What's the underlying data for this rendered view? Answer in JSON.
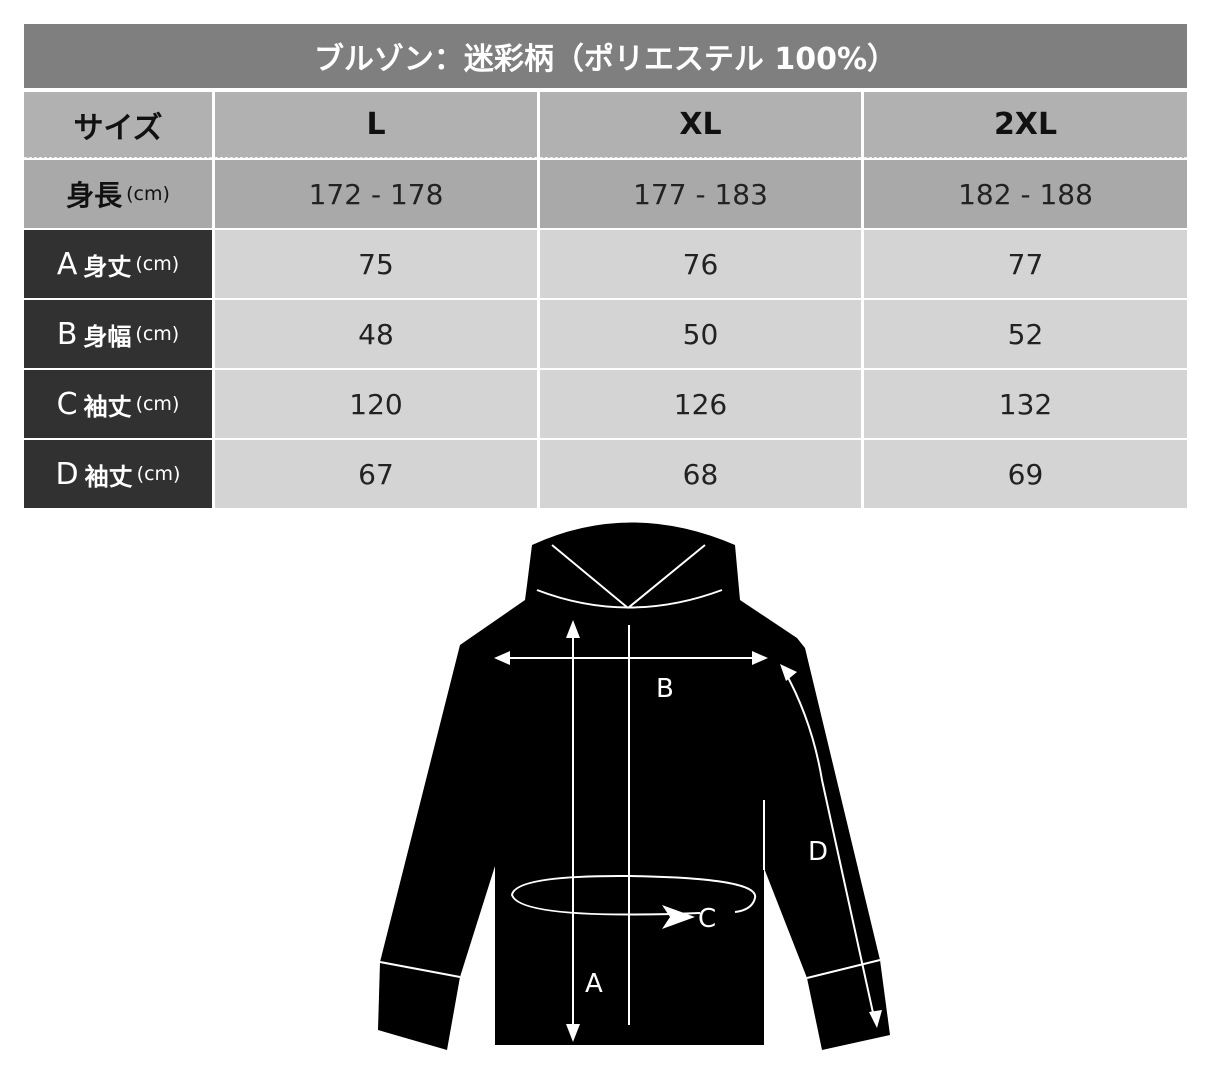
{
  "title": "ブルゾン：迷彩柄（ポリエステル 100%）",
  "header": {
    "label": "サイズ",
    "sizes": [
      "L",
      "XL",
      "2XL"
    ]
  },
  "height_row": {
    "label": "身長",
    "unit": "(cm)",
    "values": [
      "172 - 178",
      "177 - 183",
      "182 - 188"
    ]
  },
  "rows": [
    {
      "letter": "A",
      "label": "身丈",
      "unit": "(cm)",
      "values": [
        "75",
        "76",
        "77"
      ]
    },
    {
      "letter": "B",
      "label": "身幅",
      "unit": "(cm)",
      "values": [
        "48",
        "50",
        "52"
      ]
    },
    {
      "letter": "C",
      "label": "袖丈",
      "unit": "(cm)",
      "values": [
        "120",
        "126",
        "132"
      ]
    },
    {
      "letter": "D",
      "label": "袖丈",
      "unit": "(cm)",
      "values": [
        "67",
        "68",
        "69"
      ]
    }
  ],
  "diagram": {
    "labels": {
      "a": "A",
      "b": "B",
      "c": "C",
      "d": "D"
    }
  },
  "colors": {
    "title_bg": "#7f7f7f",
    "header_bg": "#b1b1b1",
    "label_bg": "#313131",
    "value_bg": "#d4d4d4"
  }
}
